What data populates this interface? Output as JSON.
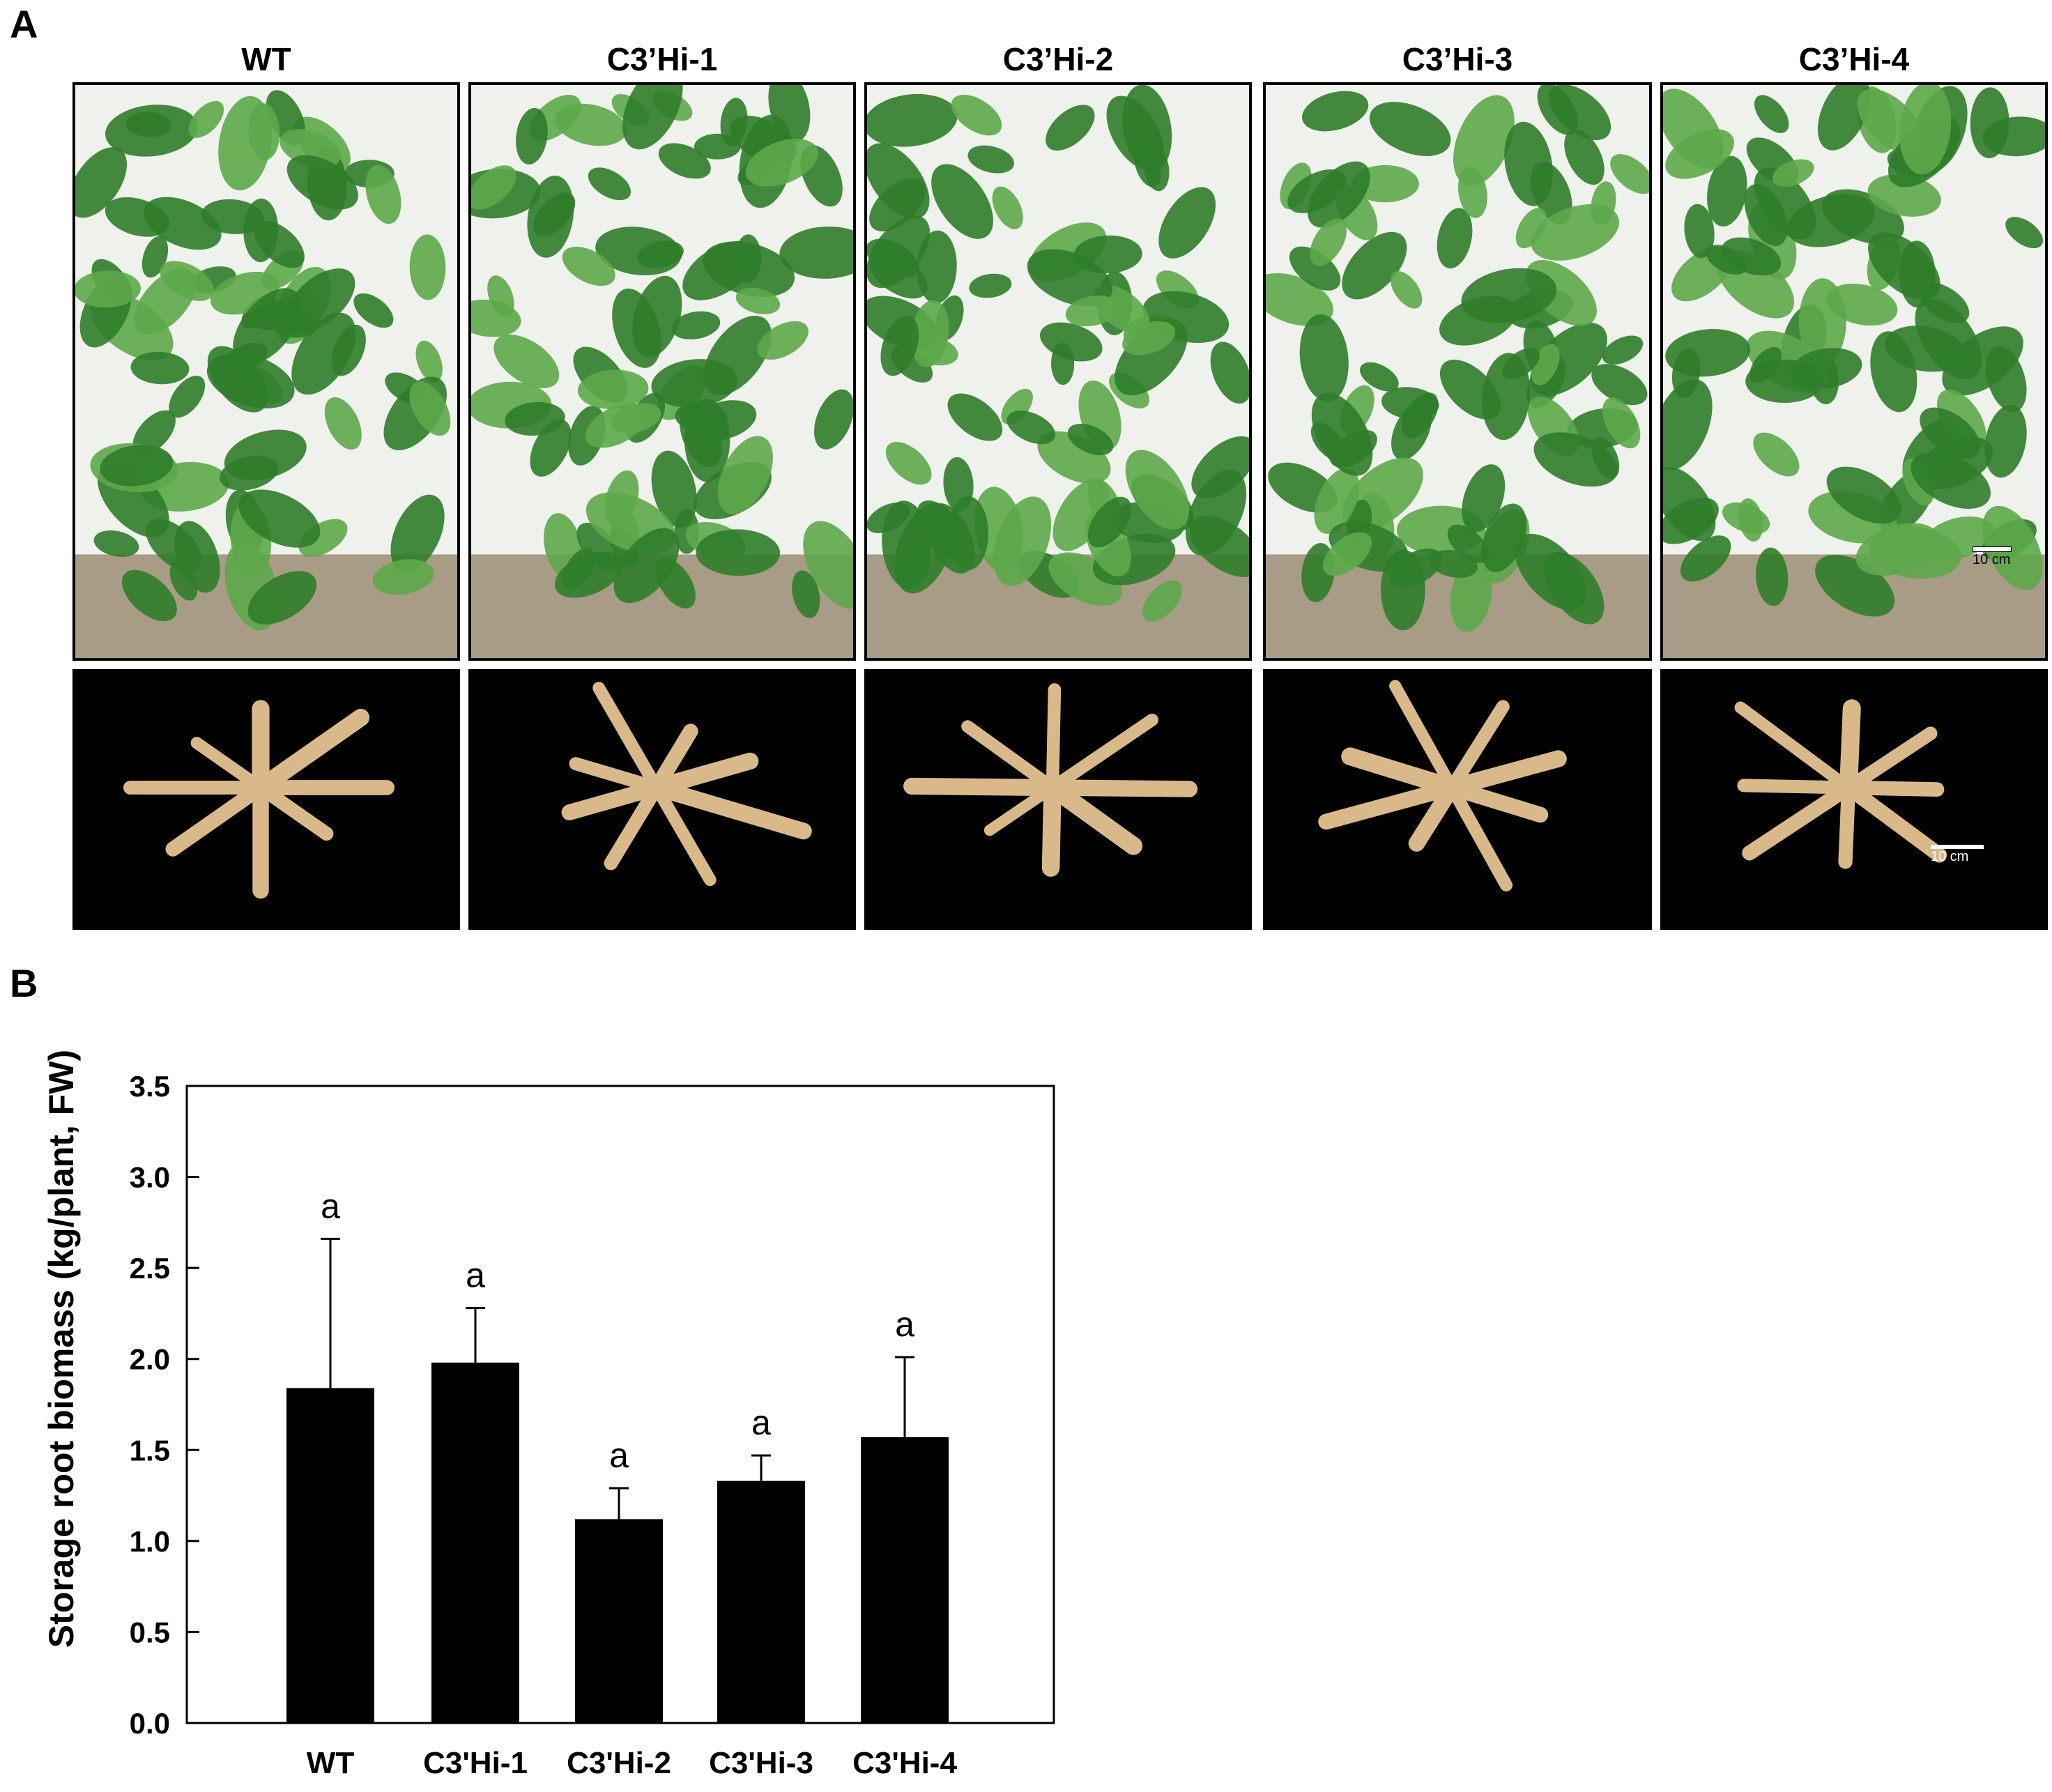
{
  "panel_a": {
    "letter": "A",
    "genotypes": [
      "WT",
      "C3’Hi-1",
      "C3’Hi-2",
      "C3’Hi-3",
      "C3’Hi-4"
    ],
    "scale_label_plant": "10 cm",
    "scale_label_root": "10 cm",
    "colors": {
      "leaf": "#2f7d2a",
      "leaf_light": "#5da84a",
      "soil": "#a89c86",
      "root": "#d9b98a",
      "root_bg": "#000000"
    }
  },
  "panel_b": {
    "letter": "B"
  },
  "chart_data": {
    "type": "bar",
    "categories": [
      "WT",
      "C3'Hi-1",
      "C3'Hi-2",
      "C3'Hi-3",
      "C3'Hi-4"
    ],
    "values": [
      1.84,
      1.98,
      1.12,
      1.33,
      1.57
    ],
    "errors": [
      0.82,
      0.3,
      0.17,
      0.14,
      0.44
    ],
    "significance": [
      "a",
      "a",
      "a",
      "a",
      "a"
    ],
    "ylabel": "Storage root biomass (kg/plant, FW)",
    "ylim": [
      0,
      3.5
    ],
    "yticks": [
      "0.0",
      "0.5",
      "1.0",
      "1.5",
      "2.0",
      "2.5",
      "3.0",
      "3.5"
    ],
    "bar_color": "#000000",
    "grid": false,
    "legend": "none"
  }
}
